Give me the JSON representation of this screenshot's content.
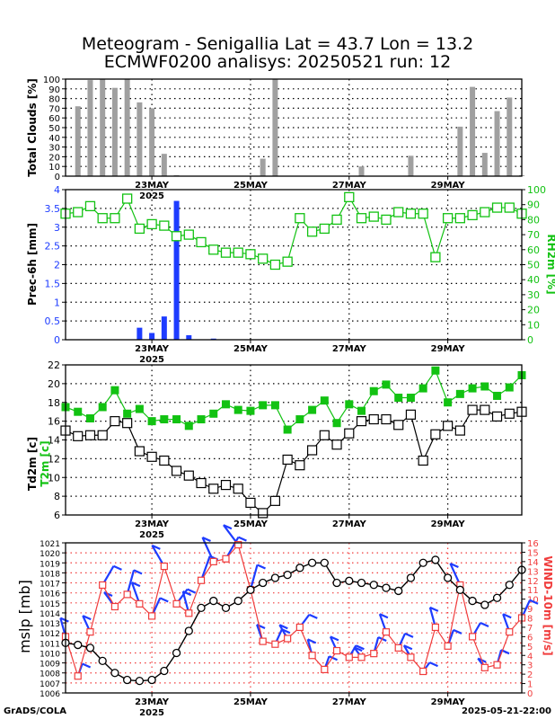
{
  "header": {
    "title_line1": "Meteogram - Senigallia Lat = 43.7 Lon = 13.2",
    "title_line2": "ECMWF0200 analisys: 20250521 run: 12",
    "credit": "GrADS/COLA",
    "timestamp": "2025-05-21-22:00"
  },
  "x_axis": {
    "range_days": [
      21.25,
      30.5
    ],
    "ticks": [
      {
        "day": 23,
        "label": "23MAY",
        "sublabel": "2025"
      },
      {
        "day": 25,
        "label": "25MAY",
        "sublabel": ""
      },
      {
        "day": 27,
        "label": "27MAY",
        "sublabel": ""
      },
      {
        "day": 29,
        "label": "29MAY",
        "sublabel": ""
      }
    ]
  },
  "colors": {
    "cloud_bar": "#a0a0a0",
    "precip_bar": "#1e3cff",
    "rh": "#12c212",
    "t2m": "#12c212",
    "td2m": "#000000",
    "mslp": "#000000",
    "wind_speed": "#f03c3c",
    "wind_barb": "#1e3cff",
    "grid": "#000000",
    "grid_red": "#f03c3c"
  },
  "chart_data": [
    {
      "type": "bar",
      "ylabel": "Total Clouds [%]",
      "ylim": [
        0,
        100
      ],
      "yticks": [
        0,
        10,
        20,
        30,
        40,
        50,
        60,
        70,
        80,
        90,
        100
      ],
      "grid": true,
      "x_day": [
        21.5,
        21.75,
        22.0,
        22.25,
        22.5,
        22.75,
        23.0,
        23.25,
        23.5,
        23.75,
        24.0,
        24.25,
        24.5,
        24.75,
        25.0,
        25.25,
        25.5,
        25.75,
        26.0,
        26.25,
        26.5,
        26.75,
        27.0,
        27.25,
        27.5,
        27.75,
        28.0,
        28.25,
        28.5,
        28.75,
        29.0,
        29.25,
        29.5,
        29.75,
        30.0,
        30.25,
        30.5
      ],
      "values": [
        72,
        99,
        100,
        91,
        100,
        76,
        70,
        23,
        1,
        0,
        0,
        0,
        0,
        0,
        0,
        18,
        100,
        0,
        0,
        0,
        0,
        0,
        0,
        10,
        0,
        0,
        0,
        21,
        0,
        0,
        0,
        51,
        92,
        24,
        67,
        81,
        1
      ]
    },
    {
      "type": "bar+line",
      "ylabel": "Prec-6h [mm]",
      "y2label": "RH2m [%]",
      "ylim": [
        0,
        4
      ],
      "yticks": [
        0,
        0.5,
        1,
        1.5,
        2,
        2.5,
        3,
        3.5,
        4
      ],
      "y2lim": [
        0,
        100
      ],
      "y2ticks": [
        0,
        10,
        20,
        30,
        40,
        50,
        60,
        70,
        80,
        90,
        100
      ],
      "grid": true,
      "series": [
        {
          "name": "Prec-6h",
          "x_day": [
            22.75,
            23.0,
            23.25,
            23.5,
            23.75,
            24.25
          ],
          "values": [
            0.32,
            0.18,
            0.62,
            3.7,
            0.12,
            0.03
          ]
        },
        {
          "name": "RH2m",
          "x_day": [
            21.25,
            21.5,
            21.75,
            22.0,
            22.25,
            22.5,
            22.75,
            23.0,
            23.25,
            23.5,
            23.75,
            24.0,
            24.25,
            24.5,
            24.75,
            25.0,
            25.25,
            25.5,
            25.75,
            26.0,
            26.25,
            26.5,
            26.75,
            27.0,
            27.25,
            27.5,
            27.75,
            28.0,
            28.25,
            28.5,
            28.75,
            29.0,
            29.25,
            29.5,
            29.75,
            30.0,
            30.25,
            30.5
          ],
          "values": [
            84,
            85,
            89,
            81,
            81,
            94,
            74,
            77,
            76,
            69,
            70,
            65,
            60,
            58,
            58,
            57,
            54,
            50,
            52,
            81,
            72,
            74,
            80,
            95,
            81,
            82,
            80,
            85,
            84,
            84,
            55,
            81,
            81,
            83,
            85,
            88,
            88,
            84
          ]
        }
      ]
    },
    {
      "type": "line",
      "ylabel": "Td2m [c]",
      "ylabel2": "T2m [c]",
      "ylim": [
        6,
        22
      ],
      "yticks": [
        6,
        8,
        10,
        12,
        14,
        16,
        18,
        20,
        22
      ],
      "grid": true,
      "series": [
        {
          "name": "T2m",
          "x_day": [
            21.25,
            21.5,
            21.75,
            22.0,
            22.25,
            22.5,
            22.75,
            23.0,
            23.25,
            23.5,
            23.75,
            24.0,
            24.25,
            24.5,
            24.75,
            25.0,
            25.25,
            25.5,
            25.75,
            26.0,
            26.25,
            26.5,
            26.75,
            27.0,
            27.25,
            27.5,
            27.75,
            28.0,
            28.25,
            28.5,
            28.75,
            29.0,
            29.25,
            29.5,
            29.75,
            30.0,
            30.25,
            30.5
          ],
          "values": [
            17.5,
            17.0,
            16.3,
            17.5,
            19.3,
            16.8,
            17.3,
            16.0,
            16.2,
            16.2,
            15.5,
            16.2,
            16.8,
            17.8,
            17.2,
            17.1,
            17.7,
            17.7,
            15.1,
            16.2,
            17.2,
            18.2,
            15.8,
            17.8,
            17.1,
            19.2,
            19.9,
            18.5,
            18.5,
            19.5,
            21.4,
            18.0,
            18.9,
            19.5,
            19.7,
            18.7,
            19.6,
            20.9
          ]
        },
        {
          "name": "Td2m",
          "x_day": [
            21.25,
            21.5,
            21.75,
            22.0,
            22.25,
            22.5,
            22.75,
            23.0,
            23.25,
            23.5,
            23.75,
            24.0,
            24.25,
            24.5,
            24.75,
            25.0,
            25.25,
            25.5,
            25.75,
            26.0,
            26.25,
            26.5,
            26.75,
            27.0,
            27.25,
            27.5,
            27.75,
            28.0,
            28.25,
            28.5,
            28.75,
            29.0,
            29.25,
            29.5,
            29.75,
            30.0,
            30.25,
            30.5
          ],
          "values": [
            15.0,
            14.4,
            14.5,
            14.5,
            16.0,
            15.8,
            12.8,
            12.2,
            11.8,
            10.7,
            10.2,
            9.4,
            8.8,
            9.2,
            8.8,
            7.3,
            6.2,
            7.5,
            11.9,
            11.3,
            12.9,
            14.5,
            13.5,
            14.7,
            16.0,
            16.2,
            16.2,
            15.6,
            16.7,
            11.8,
            14.6,
            15.5,
            15.0,
            17.2,
            17.2,
            16.5,
            16.8,
            17.0
          ]
        }
      ]
    },
    {
      "type": "line",
      "ylabel": "mslp [mb]",
      "y2label": "WIND-10m [m/s]",
      "ylim": [
        1006,
        1021
      ],
      "yticks": [
        1006,
        1007,
        1008,
        1009,
        1010,
        1011,
        1012,
        1013,
        1014,
        1015,
        1016,
        1017,
        1018,
        1019,
        1020,
        1021
      ],
      "y2lim": [
        0,
        16
      ],
      "y2ticks": [
        0,
        1,
        2,
        3,
        4,
        5,
        6,
        7,
        8,
        9,
        10,
        11,
        12,
        13,
        14,
        15,
        16
      ],
      "grid": true,
      "series": [
        {
          "name": "mslp",
          "x_day": [
            21.25,
            21.5,
            21.75,
            22.0,
            22.25,
            22.5,
            22.75,
            23.0,
            23.25,
            23.5,
            23.75,
            24.0,
            24.25,
            24.5,
            24.75,
            25.0,
            25.25,
            25.5,
            25.75,
            26.0,
            26.25,
            26.5,
            26.75,
            27.0,
            27.25,
            27.5,
            27.75,
            28.0,
            28.25,
            28.5,
            28.75,
            29.0,
            29.25,
            29.5,
            29.75,
            30.0,
            30.25,
            30.5
          ],
          "values": [
            1011.0,
            1010.8,
            1010.5,
            1009.2,
            1008.0,
            1007.3,
            1007.2,
            1007.3,
            1008.2,
            1010.0,
            1012.2,
            1014.5,
            1015.2,
            1014.5,
            1015.2,
            1016.3,
            1017.0,
            1017.5,
            1017.8,
            1018.5,
            1019.0,
            1019.0,
            1017.0,
            1017.2,
            1017.0,
            1016.8,
            1016.5,
            1016.2,
            1017.5,
            1019.0,
            1019.3,
            1017.5,
            1016.3,
            1015.2,
            1014.8,
            1015.5,
            1016.8,
            1018.3
          ]
        },
        {
          "name": "WIND-10m",
          "x_day": [
            21.25,
            21.5,
            21.75,
            22.0,
            22.25,
            22.5,
            22.75,
            23.0,
            23.25,
            23.5,
            23.75,
            24.0,
            24.25,
            24.5,
            24.75,
            25.0,
            25.25,
            25.5,
            25.75,
            26.0,
            26.25,
            26.5,
            26.75,
            27.0,
            27.25,
            27.5,
            27.75,
            28.0,
            28.25,
            28.5,
            28.75,
            29.0,
            29.25,
            29.5,
            29.75,
            30.0,
            30.25,
            30.5
          ],
          "values": [
            6.0,
            1.8,
            6.5,
            11.5,
            9.2,
            10.5,
            9.5,
            8.2,
            13.5,
            9.5,
            8.5,
            12.0,
            14.0,
            14.3,
            15.8,
            11.0,
            5.5,
            5.2,
            5.8,
            7.0,
            4.0,
            2.5,
            4.5,
            3.8,
            3.8,
            4.2,
            6.5,
            4.8,
            3.8,
            2.3,
            7.0,
            5.0,
            11.5,
            6.0,
            2.7,
            3.0,
            6.5,
            8.0
          ]
        }
      ]
    }
  ]
}
